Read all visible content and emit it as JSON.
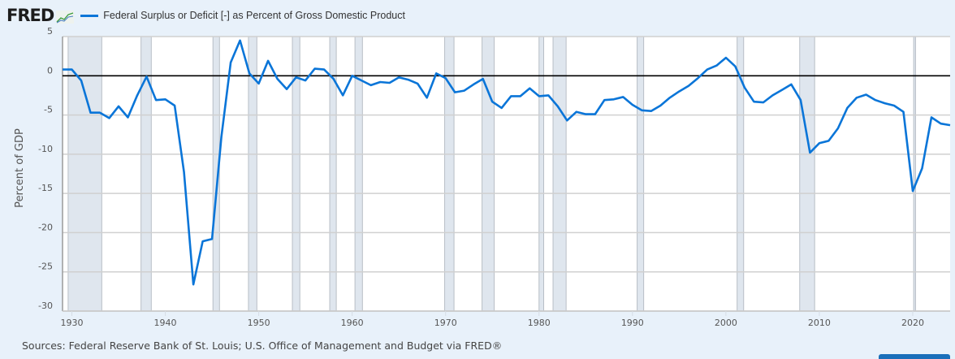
{
  "header": {
    "logo_text": "FRED",
    "logo_icon": "fred-graph-icon"
  },
  "sources": "Sources: Federal Reserve Bank of St. Louis; U.S. Office of Management and Budget via FRED®",
  "colors": {
    "series": "#0a75d8",
    "recession": "#dfe6ee",
    "recession_edge": "#b8bec6",
    "grid": "#d0d0d0",
    "zero_line": "#000000",
    "background": "#e8f1fa",
    "plot_bg": "#ffffff"
  },
  "chart_data": {
    "type": "line",
    "title": "",
    "xlabel": "",
    "ylabel": "Percent of GDP",
    "xlim": [
      1929,
      2024
    ],
    "ylim": [
      -30,
      5
    ],
    "grid": true,
    "legend_position": "top-left",
    "x_ticks": [
      "1930",
      "1940",
      "1950",
      "1960",
      "1970",
      "1980",
      "1990",
      "2000",
      "2010",
      "2020"
    ],
    "y_ticks": [
      "5",
      "0",
      "-5",
      "-10",
      "-15",
      "-20",
      "-25",
      "-30"
    ],
    "reference_line": 0,
    "series": [
      {
        "name": "Federal Surplus or Deficit [-] as Percent of Gross Domestic Product",
        "x": [
          1929,
          1930,
          1931,
          1932,
          1933,
          1934,
          1935,
          1936,
          1937,
          1938,
          1939,
          1940,
          1941,
          1942,
          1943,
          1944,
          1945,
          1946,
          1947,
          1948,
          1949,
          1950,
          1951,
          1952,
          1953,
          1954,
          1955,
          1956,
          1957,
          1958,
          1959,
          1960,
          1961,
          1962,
          1963,
          1964,
          1965,
          1966,
          1967,
          1968,
          1969,
          1970,
          1971,
          1972,
          1973,
          1974,
          1975,
          1976,
          1977,
          1978,
          1979,
          1980,
          1981,
          1982,
          1983,
          1984,
          1985,
          1986,
          1987,
          1988,
          1989,
          1990,
          1991,
          1992,
          1993,
          1994,
          1995,
          1996,
          1997,
          1998,
          1999,
          2000,
          2001,
          2002,
          2003,
          2004,
          2005,
          2006,
          2007,
          2008,
          2009,
          2010,
          2011,
          2012,
          2013,
          2014,
          2015,
          2016,
          2017,
          2018,
          2019,
          2020,
          2021,
          2022,
          2023,
          2024
        ],
        "values": [
          0.8,
          0.8,
          -0.6,
          -4.7,
          -4.7,
          -5.4,
          -3.9,
          -5.3,
          -2.5,
          -0.1,
          -3.1,
          -3.0,
          -3.8,
          -12.3,
          -26.6,
          -21.1,
          -20.8,
          -7.8,
          1.7,
          4.5,
          0.3,
          -1.0,
          1.9,
          -0.4,
          -1.7,
          -0.2,
          -0.6,
          0.9,
          0.8,
          -0.4,
          -2.5,
          0.0,
          -0.6,
          -1.2,
          -0.8,
          -0.9,
          -0.2,
          -0.5,
          -1.0,
          -2.8,
          0.3,
          -0.3,
          -2.1,
          -1.9,
          -1.1,
          -0.4,
          -3.3,
          -4.1,
          -2.6,
          -2.6,
          -1.6,
          -2.6,
          -2.5,
          -3.9,
          -5.7,
          -4.6,
          -4.9,
          -4.9,
          -3.1,
          -3.0,
          -2.7,
          -3.7,
          -4.4,
          -4.5,
          -3.8,
          -2.8,
          -2.0,
          -1.3,
          -0.3,
          0.8,
          1.3,
          2.3,
          1.2,
          -1.5,
          -3.3,
          -3.4,
          -2.5,
          -1.8,
          -1.1,
          -3.1,
          -9.8,
          -8.6,
          -8.3,
          -6.7,
          -4.1,
          -2.8,
          -2.4,
          -3.1,
          -3.5,
          -3.8,
          -4.6,
          -14.7,
          -11.8,
          -5.3,
          -6.1,
          -6.3
        ]
      }
    ],
    "recessions": [
      [
        1929.6,
        1933.2
      ],
      [
        1937.4,
        1938.5
      ],
      [
        1945.1,
        1945.8
      ],
      [
        1948.9,
        1949.8
      ],
      [
        1953.6,
        1954.4
      ],
      [
        1957.6,
        1958.3
      ],
      [
        1960.3,
        1961.1
      ],
      [
        1969.9,
        1970.9
      ],
      [
        1973.9,
        1975.2
      ],
      [
        1980.0,
        1980.5
      ],
      [
        1981.5,
        1982.9
      ],
      [
        1990.5,
        1991.2
      ],
      [
        2001.2,
        2001.9
      ],
      [
        2007.9,
        2009.5
      ],
      [
        2020.1,
        2020.3
      ]
    ]
  }
}
